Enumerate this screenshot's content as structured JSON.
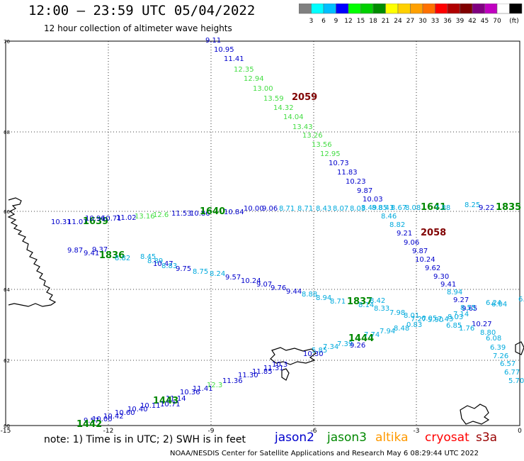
{
  "header": {
    "title": "12:00 — 23:59 UTC 05/04/2022",
    "subtitle": "12 hour collection of altimeter wave heights"
  },
  "colorbar": {
    "colors": [
      "#808080",
      "#00ffff",
      "#00bfff",
      "#0000ff",
      "#00ff00",
      "#00d000",
      "#008c00",
      "#ffff00",
      "#ffd000",
      "#ffa000",
      "#ff7000",
      "#ff0000",
      "#b00000",
      "#800000",
      "#800080",
      "#c000c0",
      "#ffffff",
      "#000000"
    ],
    "labels": [
      "3",
      "6",
      "9",
      "12",
      "15",
      "18",
      "21",
      "24",
      "27",
      "30",
      "33",
      "36",
      "39",
      "42",
      "45",
      "70"
    ],
    "unit": "(ft)"
  },
  "axes": {
    "x_labels": [
      "-15",
      "-12",
      "-9",
      "-6",
      "-3",
      "0"
    ],
    "y_labels": [
      "70",
      "68",
      "66",
      "64",
      "62",
      "60"
    ]
  },
  "satellites": {
    "jason2": {
      "label": "jason2",
      "color": "#0000cc"
    },
    "jason3": {
      "label": "jason3",
      "color": "#008800"
    },
    "altika": {
      "label": "altika",
      "color": "#ff9900"
    },
    "cryosat": {
      "label": "cryosat",
      "color": "#ff0000"
    },
    "s3a": {
      "label": "s3a",
      "color": "#990000"
    },
    "s3b_color": "#00aadd",
    "light_green": "#44dd44"
  },
  "note": "note:  1) Time is in UTC;  2) SWH is in feet",
  "footer": "NOAA/NESDIS Center for Satellite Applications and Research     May  6 08:29:44 UTC 2022",
  "labels": [
    {
      "t": "9.11",
      "c": "#0000cc"
    },
    {
      "t": "10.95",
      "c": "#0000cc"
    },
    {
      "t": "11.41",
      "c": "#0000cc"
    },
    {
      "t": "12.35",
      "c": "#44dd44"
    },
    {
      "t": "12.94",
      "c": "#44dd44"
    },
    {
      "t": "13.00",
      "c": "#44dd44"
    },
    {
      "t": "13.59",
      "c": "#44dd44"
    },
    {
      "t": "2059",
      "c": "#800000",
      "b": 1
    },
    {
      "t": "14.32",
      "c": "#44dd44"
    },
    {
      "t": "14.04",
      "c": "#44dd44"
    },
    {
      "t": "13.43",
      "c": "#44dd44"
    },
    {
      "t": "13.26",
      "c": "#44dd44"
    },
    {
      "t": "13.56",
      "c": "#44dd44"
    },
    {
      "t": "12.95",
      "c": "#44dd44"
    },
    {
      "t": "10.73",
      "c": "#0000cc"
    },
    {
      "t": "11.83",
      "c": "#0000cc"
    },
    {
      "t": "10.23",
      "c": "#0000cc"
    },
    {
      "t": "9.87",
      "c": "#0000cc"
    },
    {
      "t": "10.03",
      "c": "#0000cc"
    },
    {
      "t": "8.85",
      "c": "#00aadd"
    },
    {
      "t": "8.46",
      "c": "#00aadd"
    },
    {
      "t": "8.82",
      "c": "#00aadd"
    },
    {
      "t": "9.21",
      "c": "#0000cc"
    },
    {
      "t": "2058",
      "c": "#800000",
      "b": 1
    },
    {
      "t": "9.06",
      "c": "#0000cc"
    },
    {
      "t": "9.87",
      "c": "#0000cc"
    },
    {
      "t": "10.24",
      "c": "#0000cc"
    },
    {
      "t": "9.62",
      "c": "#0000cc"
    },
    {
      "t": "9.30",
      "c": "#0000cc"
    },
    {
      "t": "9.41",
      "c": "#0000cc"
    },
    {
      "t": "8.94",
      "c": "#00aadd"
    },
    {
      "t": "9.27",
      "c": "#0000cc"
    },
    {
      "t": "9.65",
      "c": "#0000cc"
    },
    {
      "t": "8.55",
      "c": "#00aadd"
    },
    {
      "t": "10.27",
      "c": "#0000cc"
    },
    {
      "t": "8.80",
      "c": "#00aadd"
    },
    {
      "t": "6.08",
      "c": "#00aadd"
    },
    {
      "t": "6.39",
      "c": "#00aadd"
    },
    {
      "t": "7.26",
      "c": "#00aadd"
    },
    {
      "t": "6.57",
      "c": "#00aadd"
    },
    {
      "t": "6.77",
      "c": "#00aadd"
    },
    {
      "t": "5.70",
      "c": "#00aadd"
    },
    {
      "t": "6.24",
      "c": "#00aadd"
    },
    {
      "t": "6.04",
      "c": "#00aadd"
    },
    {
      "t": "6.75",
      "c": "#00aadd"
    },
    {
      "t": "10.31",
      "c": "#0000cc"
    },
    {
      "t": "11.01",
      "c": "#0000cc"
    },
    {
      "t": "1639",
      "c": "#008800",
      "b": 1
    },
    {
      "t": "10.96",
      "c": "#0000cc"
    },
    {
      "t": "10.71",
      "c": "#0000cc"
    },
    {
      "t": "11.02",
      "c": "#0000cc"
    },
    {
      "t": "13.16",
      "c": "#44dd44"
    },
    {
      "t": "12.6",
      "c": "#44dd44"
    },
    {
      "t": "11.53",
      "c": "#0000cc"
    },
    {
      "t": "10.86",
      "c": "#0000cc"
    },
    {
      "t": "1640",
      "c": "#008800",
      "b": 1
    },
    {
      "t": "10.84",
      "c": "#0000cc"
    },
    {
      "t": "10.00",
      "c": "#0000cc"
    },
    {
      "t": "9.06",
      "c": "#0000cc"
    },
    {
      "t": "8.71",
      "c": "#00aadd"
    },
    {
      "t": "8.71",
      "c": "#00aadd"
    },
    {
      "t": "8.43",
      "c": "#00aadd"
    },
    {
      "t": "8.07",
      "c": "#00aadd"
    },
    {
      "t": "8.03",
      "c": "#00aadd"
    },
    {
      "t": "8.49",
      "c": "#00aadd"
    },
    {
      "t": "8.43",
      "c": "#00aadd"
    },
    {
      "t": "8.67",
      "c": "#00aadd"
    },
    {
      "t": "8.08",
      "c": "#00aadd"
    },
    {
      "t": "1641",
      "c": "#008800",
      "b": 1
    },
    {
      "t": "7.88",
      "c": "#00aadd"
    },
    {
      "t": "8.25",
      "c": "#00aadd"
    },
    {
      "t": "9.22",
      "c": "#0000cc"
    },
    {
      "t": "1835",
      "c": "#008800",
      "b": 1
    },
    {
      "t": "9.87",
      "c": "#0000cc"
    },
    {
      "t": "9.37",
      "c": "#0000cc"
    },
    {
      "t": "9.41",
      "c": "#0000cc"
    },
    {
      "t": "1836",
      "c": "#008800",
      "b": 1
    },
    {
      "t": "8.82",
      "c": "#00aadd"
    },
    {
      "t": "8.45",
      "c": "#00aadd"
    },
    {
      "t": "8.89",
      "c": "#00aadd"
    },
    {
      "t": "10.47",
      "c": "#0000cc"
    },
    {
      "t": "8.83",
      "c": "#00aadd"
    },
    {
      "t": "9.75",
      "c": "#0000cc"
    },
    {
      "t": "8.75",
      "c": "#00aadd"
    },
    {
      "t": "8.24",
      "c": "#00aadd"
    },
    {
      "t": "9.57",
      "c": "#0000cc"
    },
    {
      "t": "10.24",
      "c": "#0000cc"
    },
    {
      "t": "9.07",
      "c": "#0000cc"
    },
    {
      "t": "9.76",
      "c": "#0000cc"
    },
    {
      "t": "9.44",
      "c": "#0000cc"
    },
    {
      "t": "8.88",
      "c": "#00aadd"
    },
    {
      "t": "8.94",
      "c": "#00aadd"
    },
    {
      "t": "8.71",
      "c": "#00aadd"
    },
    {
      "t": "1837",
      "c": "#008800",
      "b": 1
    },
    {
      "t": "8.14",
      "c": "#00aadd"
    },
    {
      "t": "8.42",
      "c": "#00aadd"
    },
    {
      "t": "8.33",
      "c": "#00aadd"
    },
    {
      "t": "7.98",
      "c": "#00aadd"
    },
    {
      "t": "8.01",
      "c": "#00aadd"
    },
    {
      "t": "7.27",
      "c": "#00aadd"
    },
    {
      "t": "6.05",
      "c": "#00aadd"
    },
    {
      "t": "5.90",
      "c": "#00aadd"
    },
    {
      "t": "7.43",
      "c": "#00aadd"
    },
    {
      "t": "8.03",
      "c": "#00aadd"
    },
    {
      "t": "7.14",
      "c": "#00aadd"
    },
    {
      "t": "6.85",
      "c": "#00aadd"
    },
    {
      "t": "1.76",
      "c": "#00aadd"
    },
    {
      "t": "5.85",
      "c": "#00aadd"
    },
    {
      "t": "7.34",
      "c": "#00aadd"
    },
    {
      "t": "7.39",
      "c": "#00aadd"
    },
    {
      "t": "1444",
      "c": "#008800",
      "b": 1
    },
    {
      "t": "9.26",
      "c": "#0000cc"
    },
    {
      "t": "7.74",
      "c": "#00aadd"
    },
    {
      "t": "7.94",
      "c": "#00aadd"
    },
    {
      "t": "8.48",
      "c": "#00aadd"
    },
    {
      "t": "0.83",
      "c": "#00aadd"
    },
    {
      "t": "10.30",
      "c": "#0000cc"
    },
    {
      "t": "10.3",
      "c": "#0000cc"
    },
    {
      "t": "11.31",
      "c": "#0000cc"
    },
    {
      "t": "11.85",
      "c": "#0000cc"
    },
    {
      "t": "11.30",
      "c": "#0000cc"
    },
    {
      "t": "11.36",
      "c": "#0000cc"
    },
    {
      "t": "12.3",
      "c": "#44dd44"
    },
    {
      "t": "11.41",
      "c": "#0000cc"
    },
    {
      "t": "10.36",
      "c": "#0000cc"
    },
    {
      "t": "11.14",
      "c": "#0000cc"
    },
    {
      "t": "1443",
      "c": "#008800",
      "b": 1
    },
    {
      "t": "10.71",
      "c": "#0000cc"
    },
    {
      "t": "10.11",
      "c": "#0000cc"
    },
    {
      "t": "10.40",
      "c": "#0000cc"
    },
    {
      "t": "10.60",
      "c": "#0000cc"
    },
    {
      "t": "10.42",
      "c": "#0000cc"
    },
    {
      "t": "10.00",
      "c": "#0000cc"
    },
    {
      "t": "9.57",
      "c": "#0000cc"
    },
    {
      "t": "1442",
      "c": "#008800",
      "b": 1
    }
  ]
}
